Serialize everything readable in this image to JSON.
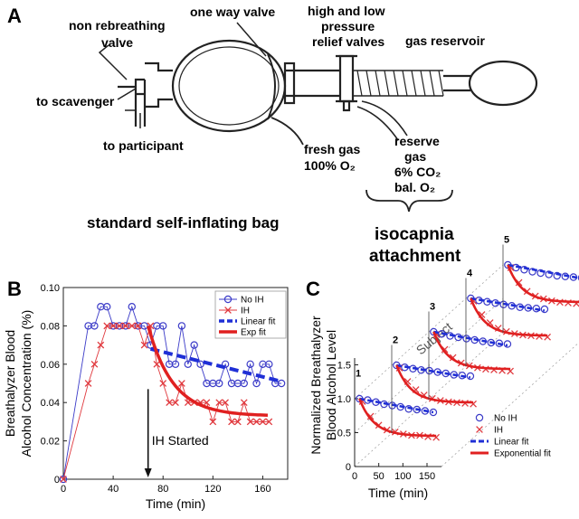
{
  "panels": {
    "a": "A",
    "b": "B",
    "c": "C"
  },
  "diagram": {
    "non_rebreathing_1": "non rebreathing",
    "non_rebreathing_2": "valve",
    "one_way_valve": "one way valve",
    "relief_1": "high and low",
    "relief_2": "pressure",
    "relief_3": "relief valves",
    "gas_reservoir": "gas reservoir",
    "to_scavenger": "to scavenger",
    "to_participant": "to participant",
    "fresh_gas_1": "fresh gas",
    "fresh_gas_2": "100% O₂",
    "reserve_1": "reserve",
    "reserve_2": "gas",
    "reserve_3": "6% CO₂",
    "reserve_4": "bal. O₂",
    "standard_bag": "standard self-inflating bag",
    "isocapnia_1": "isocapnia",
    "isocapnia_2": "attachment"
  },
  "chart_data": [
    {
      "type": "line",
      "panel": "B",
      "xlabel": "Time (min)",
      "ylabel_line1": "Breathalyzer Blood",
      "ylabel_line2": "Alcohol Concentration (%)",
      "xlim": [
        0,
        180
      ],
      "ylim": [
        0,
        0.1
      ],
      "xticks": [
        0,
        40,
        80,
        120,
        160
      ],
      "yticks": [
        0,
        0.02,
        0.04,
        0.06,
        0.08,
        0.1
      ],
      "ytick_labels": [
        "0",
        "0.02",
        "0.04",
        "0.06",
        "0.08",
        "0.10"
      ],
      "grid": false,
      "legend_position": "top-right",
      "annotation": {
        "text": "IH Started",
        "x": 68
      },
      "series": [
        {
          "name": "No IH",
          "marker": "circle",
          "color": "#3b3bc8",
          "x": [
            0,
            20,
            25,
            30,
            35,
            40,
            45,
            50,
            55,
            60,
            65,
            70,
            75,
            80,
            85,
            90,
            95,
            100,
            105,
            110,
            115,
            120,
            125,
            130,
            135,
            140,
            145,
            150,
            155,
            160,
            165,
            170,
            175
          ],
          "y": [
            0,
            0.08,
            0.08,
            0.09,
            0.09,
            0.08,
            0.08,
            0.08,
            0.09,
            0.08,
            0.08,
            0.07,
            0.08,
            0.08,
            0.06,
            0.06,
            0.08,
            0.06,
            0.07,
            0.06,
            0.05,
            0.05,
            0.05,
            0.06,
            0.05,
            0.05,
            0.05,
            0.06,
            0.05,
            0.06,
            0.06,
            0.05,
            0.05
          ]
        },
        {
          "name": "IH",
          "marker": "x",
          "color": "#e0393e",
          "x": [
            0,
            20,
            25,
            30,
            35,
            40,
            45,
            50,
            55,
            60,
            65,
            70,
            75,
            80,
            85,
            90,
            95,
            100,
            105,
            110,
            115,
            120,
            125,
            130,
            135,
            140,
            145,
            150,
            155,
            160,
            165
          ],
          "y": [
            0,
            0.05,
            0.06,
            0.07,
            0.08,
            0.08,
            0.08,
            0.08,
            0.08,
            0.08,
            0.07,
            0.08,
            0.06,
            0.05,
            0.04,
            0.04,
            0.05,
            0.04,
            0.04,
            0.04,
            0.04,
            0.03,
            0.04,
            0.04,
            0.03,
            0.03,
            0.04,
            0.03,
            0.03,
            0.03,
            0.03
          ]
        },
        {
          "name": "Linear fit",
          "style": "dashed",
          "color": "#1f2fd6",
          "x": [
            70,
            175
          ],
          "y": [
            0.068,
            0.051
          ]
        },
        {
          "name": "Exp fit",
          "style": "solid",
          "color": "#e02020",
          "fit": {
            "x0": 68,
            "x1": 165,
            "a": 0.08,
            "c": 0.033,
            "tau": 20
          }
        }
      ]
    },
    {
      "type": "line",
      "panel": "C",
      "xlabel": "Time (min)",
      "ylabel_line1": "Normalized Breathalyzer",
      "ylabel_line2": "Blood Alcohol Level",
      "depth_label": "Subject",
      "xlim": [
        0,
        180
      ],
      "ylim": [
        0,
        1.6
      ],
      "xticks": [
        0,
        50,
        100,
        150
      ],
      "yticks": [
        0,
        0.5,
        1,
        1.5
      ],
      "ytick_labels": [
        "0",
        "0.5",
        "1.0",
        "1.5"
      ],
      "legend_position": "bottom-right",
      "legend": [
        {
          "name": "No IH",
          "marker": "circle",
          "color": "#3b3bc8"
        },
        {
          "name": "IH",
          "marker": "x",
          "color": "#e0393e"
        },
        {
          "name": "Linear fit",
          "style": "dashed",
          "color": "#1f2fd6"
        },
        {
          "name": "Exponential fit",
          "style": "solid",
          "color": "#e02020"
        }
      ],
      "subjects": [
        {
          "label": "1",
          "noih": [
            1.0,
            0.98,
            0.95,
            0.92,
            0.9,
            0.88,
            0.85,
            0.84,
            0.82,
            0.8
          ],
          "ih": [
            1.0,
            0.78,
            0.65,
            0.58,
            0.55,
            0.52,
            0.5,
            0.5,
            0.48,
            0.47
          ],
          "lin": [
            1.0,
            0.8
          ],
          "exp_c": 0.45
        },
        {
          "label": "2",
          "noih": [
            1.0,
            0.97,
            0.95,
            0.93,
            0.92,
            0.9,
            0.88,
            0.86,
            0.85,
            0.84
          ],
          "ih": [
            1.0,
            0.8,
            0.68,
            0.6,
            0.55,
            0.52,
            0.5,
            0.49,
            0.48,
            0.47
          ],
          "lin": [
            1.0,
            0.82
          ],
          "exp_c": 0.45
        },
        {
          "label": "3",
          "noih": [
            1.0,
            0.97,
            0.94,
            0.92,
            0.9,
            0.88,
            0.86,
            0.84,
            0.83,
            0.82
          ],
          "ih": [
            1.0,
            0.78,
            0.66,
            0.58,
            0.54,
            0.51,
            0.49,
            0.48,
            0.47,
            0.46
          ],
          "lin": [
            1.0,
            0.8
          ],
          "exp_c": 0.45
        },
        {
          "label": "4",
          "noih": [
            1.0,
            0.97,
            0.95,
            0.93,
            0.91,
            0.89,
            0.87,
            0.86,
            0.85,
            0.84
          ],
          "ih": [
            1.0,
            0.8,
            0.68,
            0.6,
            0.55,
            0.52,
            0.5,
            0.49,
            0.48,
            0.47
          ],
          "lin": [
            1.0,
            0.82
          ],
          "exp_c": 0.45
        },
        {
          "label": "5",
          "noih": [
            1.0,
            0.96,
            0.93,
            0.9,
            0.88,
            0.86,
            0.84,
            0.83,
            0.82,
            0.81
          ],
          "ih": [
            1.0,
            0.78,
            0.65,
            0.58,
            0.54,
            0.51,
            0.49,
            0.48,
            0.47,
            0.46
          ],
          "lin": [
            1.0,
            0.8
          ],
          "exp_c": 0.45
        }
      ]
    }
  ]
}
